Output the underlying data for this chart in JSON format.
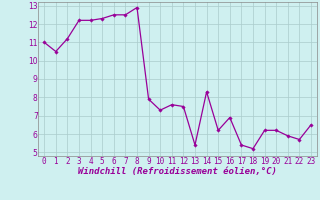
{
  "x": [
    0,
    1,
    2,
    3,
    4,
    5,
    6,
    7,
    8,
    9,
    10,
    11,
    12,
    13,
    14,
    15,
    16,
    17,
    18,
    19,
    20,
    21,
    22,
    23
  ],
  "y": [
    11.0,
    10.5,
    11.2,
    12.2,
    12.2,
    12.3,
    12.5,
    12.5,
    12.9,
    7.9,
    7.3,
    7.6,
    7.5,
    5.4,
    8.3,
    6.2,
    6.9,
    5.4,
    5.2,
    6.2,
    6.2,
    5.9,
    5.7,
    6.5
  ],
  "line_color": "#990099",
  "marker": "D",
  "marker_size": 1.8,
  "line_width": 0.9,
  "bg_color": "#cff0f0",
  "grid_color": "#aacccc",
  "xlabel": "Windchill (Refroidissement éolien,°C)",
  "xlabel_color": "#990099",
  "xlabel_fontsize": 6.5,
  "tick_color": "#990099",
  "tick_fontsize": 5.5,
  "ylim": [
    5,
    13
  ],
  "xlim": [
    -0.5,
    23.5
  ],
  "yticks": [
    5,
    6,
    7,
    8,
    9,
    10,
    11,
    12,
    13
  ],
  "xticks": [
    0,
    1,
    2,
    3,
    4,
    5,
    6,
    7,
    8,
    9,
    10,
    11,
    12,
    13,
    14,
    15,
    16,
    17,
    18,
    19,
    20,
    21,
    22,
    23
  ]
}
